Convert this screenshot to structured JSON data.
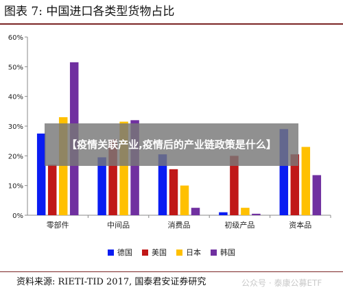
{
  "figure": {
    "title": "图表 7:  中国进口各类型货物占比",
    "source": "资料来源: RIETI-TID 2017, 国泰君安证券研究"
  },
  "overlay": {
    "text": "【疫情关联产业,疫情后的产业链政策是什么】"
  },
  "watermark": {
    "text": "公众号 · 泰康公募ETF"
  },
  "chart_data": {
    "type": "bar",
    "title": "",
    "xlabel": "",
    "ylabel": "",
    "categories": [
      "零部件",
      "中间品",
      "消费品",
      "初级产品",
      "资本品"
    ],
    "ylim": [
      0,
      60
    ],
    "yticks": [
      0,
      10,
      20,
      30,
      40,
      50,
      60
    ],
    "ytick_format": "percent",
    "grid": false,
    "legend_position": "bottom",
    "series": [
      {
        "name": "德国",
        "color": "#0a1cf2",
        "values": [
          27.5,
          19.5,
          20.5,
          1.0,
          29.0
        ]
      },
      {
        "name": "美国",
        "color": "#c01818",
        "values": [
          17.0,
          25.5,
          15.5,
          20.0,
          20.5
        ]
      },
      {
        "name": "日本",
        "color": "#ffc000",
        "values": [
          33.0,
          31.5,
          10.0,
          2.5,
          23.0
        ]
      },
      {
        "name": "韩国",
        "color": "#7030a0",
        "values": [
          51.5,
          32.0,
          2.5,
          0.5,
          13.5
        ]
      }
    ]
  }
}
